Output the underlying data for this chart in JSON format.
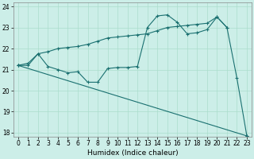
{
  "xlabel": "Humidex (Indice chaleur)",
  "background_color": "#cceee8",
  "grid_color": "#aaddcc",
  "line_color": "#1a7070",
  "xlim": [
    -0.5,
    23.5
  ],
  "ylim": [
    17.8,
    24.2
  ],
  "yticks": [
    18,
    19,
    20,
    21,
    22,
    23,
    24
  ],
  "xticks": [
    0,
    1,
    2,
    3,
    4,
    5,
    6,
    7,
    8,
    9,
    10,
    11,
    12,
    13,
    14,
    15,
    16,
    17,
    18,
    19,
    20,
    21,
    22,
    23
  ],
  "line1_y": [
    21.2,
    21.3,
    21.75,
    21.85,
    22.0,
    22.05,
    22.1,
    22.2,
    22.35,
    22.5,
    22.55,
    22.6,
    22.65,
    22.7,
    22.85,
    23.0,
    23.05,
    23.1,
    23.15,
    23.2,
    23.5,
    23.0
  ],
  "line2_y": [
    21.2,
    21.2,
    21.75,
    21.15,
    21.0,
    20.85,
    20.9,
    20.4,
    20.4,
    21.05,
    21.1,
    21.1,
    21.15,
    23.0,
    23.55,
    23.6,
    23.25,
    22.7,
    22.75,
    22.9,
    23.5,
    23.0,
    20.6,
    17.85
  ],
  "line3_y": [
    21.2,
    17.85
  ],
  "line3_x": [
    0,
    23
  ]
}
